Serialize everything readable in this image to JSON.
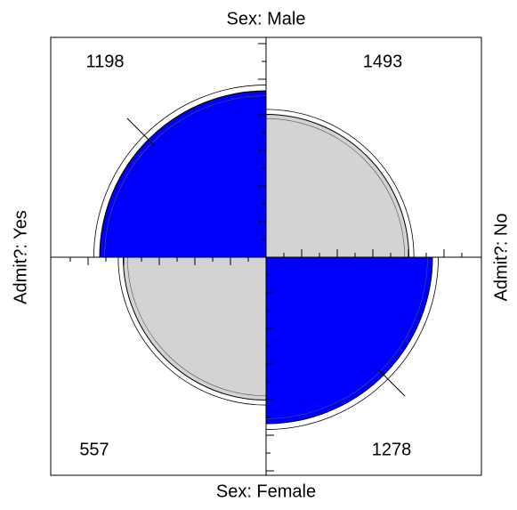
{
  "chart_data": {
    "type": "fourfold",
    "top_label": "Sex: Male",
    "bottom_label": "Sex: Female",
    "left_label": "Admit?: Yes",
    "right_label": "Admit?: No",
    "values": [
      [
        1198,
        1493
      ],
      [
        557,
        1278
      ]
    ],
    "color": "#0000ff",
    "color2": "#d3d3d3"
  }
}
